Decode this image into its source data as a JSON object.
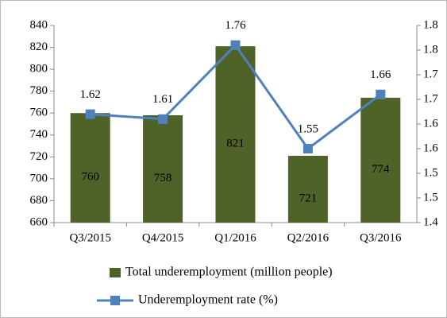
{
  "chart_data": {
    "type": "bar",
    "categories": [
      "Q3/2015",
      "Q4/2015",
      "Q1/2016",
      "Q2/2016",
      "Q3/2016"
    ],
    "series": [
      {
        "name": "Total underemployment (million people)",
        "type": "bar",
        "color": "#4f6228",
        "values": [
          760,
          758,
          821,
          721,
          774
        ]
      },
      {
        "name": "Underemployment rate (%)",
        "type": "line",
        "axis": "y2",
        "color": "#4f81bd",
        "values": [
          1.62,
          1.61,
          1.76,
          1.55,
          1.66
        ]
      }
    ],
    "ylim": [
      660,
      840
    ],
    "yticks": [
      660,
      680,
      700,
      720,
      740,
      760,
      780,
      800,
      820,
      840
    ],
    "y2lim": [
      1.4,
      1.8
    ],
    "y2ticks": [
      1.4,
      {
        "value": 1.45,
        "label": "1.5"
      },
      1.5,
      {
        "value": 1.55,
        "label": "1.6"
      },
      1.6,
      {
        "value": 1.65,
        "label": "1.7"
      },
      1.7,
      {
        "value": 1.75,
        "label": "1.8"
      },
      1.8
    ],
    "legend": "bottom"
  }
}
